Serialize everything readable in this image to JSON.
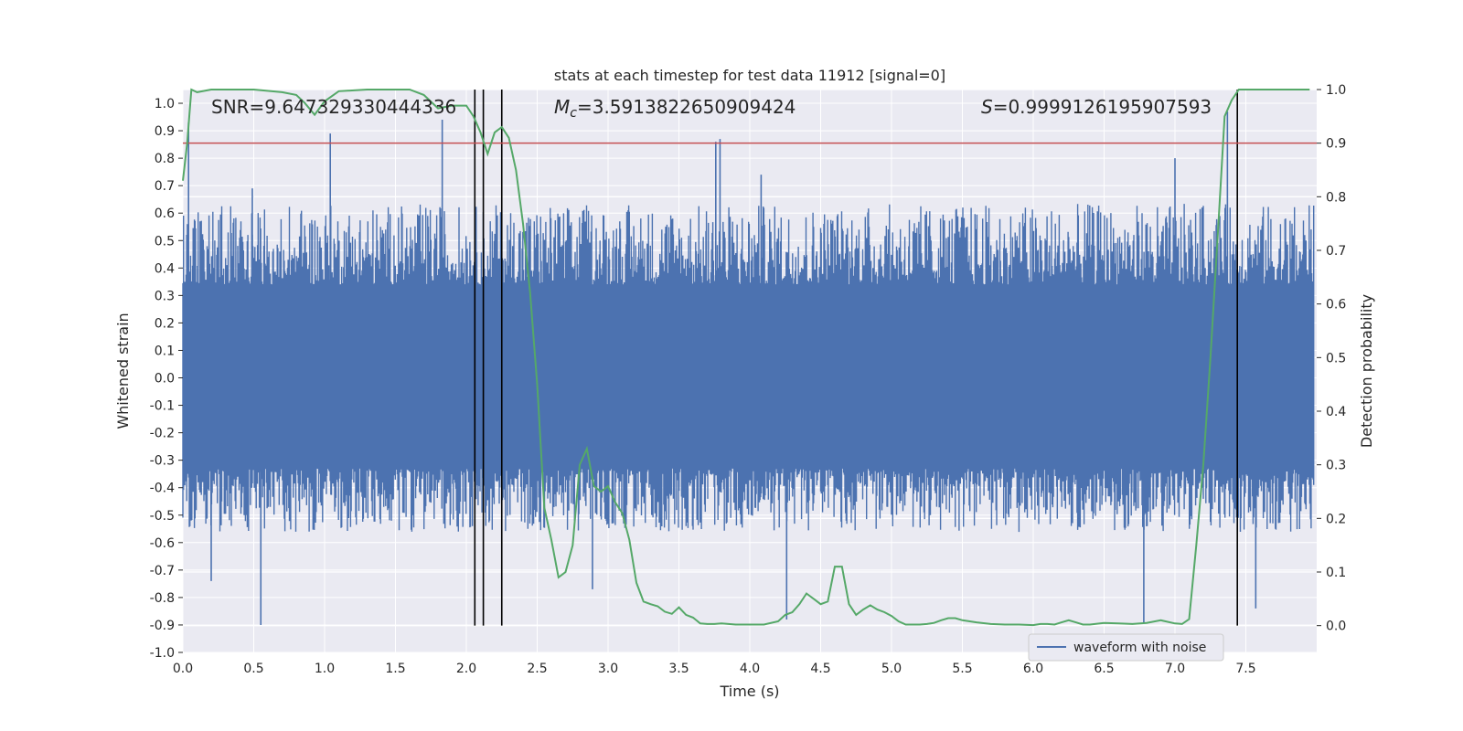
{
  "chart_data": {
    "type": "line",
    "title": "stats at each timestep for test data 11912 [signal=0]",
    "xlabel": "Time (s)",
    "ylabel": "Whitened strain",
    "y2label": "Detection probability",
    "xlim": [
      0.0,
      8.0
    ],
    "ylim": [
      -1.0,
      1.05
    ],
    "y2lim": [
      -0.05,
      1.0
    ],
    "xticks": [
      "0.0",
      "0.5",
      "1.0",
      "1.5",
      "2.0",
      "2.5",
      "3.0",
      "3.5",
      "4.0",
      "4.5",
      "5.0",
      "5.5",
      "6.0",
      "6.5",
      "7.0",
      "7.5"
    ],
    "yticks": [
      "1.0",
      "0.9",
      "0.8",
      "0.7",
      "0.6",
      "0.5",
      "0.4",
      "0.3",
      "0.2",
      "0.1",
      "0.0",
      "-0.1",
      "-0.2",
      "-0.3",
      "-0.4",
      "-0.5",
      "-0.6",
      "-0.7",
      "-0.8",
      "-0.9",
      "-1.0"
    ],
    "y2ticks": [
      "1.0",
      "0.9",
      "0.8",
      "0.7",
      "0.6",
      "0.5",
      "0.4",
      "0.3",
      "0.2",
      "0.1",
      "0.0"
    ],
    "grid": true,
    "legend_placement": "lower-right",
    "colors": {
      "background": "#eaeaf2",
      "grid": "#ffffff",
      "waveform": "#4c72b0",
      "probability": "#55a868",
      "threshold": "#c44e52",
      "markers": "#000000"
    },
    "annotations": {
      "snr": "SNR=9.647329330444336",
      "mc": "=3.5913822650909424",
      "mc_symbol": "M",
      "mc_subscript": "c",
      "s": "=0.9999126195907593",
      "s_symbol": "S"
    },
    "threshold_y2": 0.9,
    "vertical_lines_x": [
      2.06,
      2.12,
      2.25,
      7.44
    ],
    "series": [
      {
        "name": "waveform with noise",
        "style": "dense-noise",
        "band_y": [
          -0.33,
          0.34
        ],
        "typical_peak_y": [
          -0.55,
          0.62
        ],
        "spikes": [
          {
            "x": 0.04,
            "y": 0.93
          },
          {
            "x": 0.55,
            "y": -0.9
          },
          {
            "x": 1.04,
            "y": 0.89
          },
          {
            "x": 1.83,
            "y": 0.94
          },
          {
            "x": 3.76,
            "y": 0.86
          },
          {
            "x": 3.79,
            "y": 0.87
          },
          {
            "x": 4.26,
            "y": -0.88
          },
          {
            "x": 7.37,
            "y": 0.97
          },
          {
            "x": 6.78,
            "y": -0.89
          },
          {
            "x": 0.2,
            "y": -0.74
          },
          {
            "x": 0.49,
            "y": 0.69
          },
          {
            "x": 2.89,
            "y": -0.77
          },
          {
            "x": 4.08,
            "y": 0.74
          },
          {
            "x": 7.57,
            "y": -0.84
          },
          {
            "x": 7.0,
            "y": 0.8
          }
        ]
      },
      {
        "name": "",
        "axis": "y2",
        "x": [
          0.0,
          0.03,
          0.06,
          0.1,
          0.2,
          0.3,
          0.5,
          0.7,
          0.8,
          0.86,
          0.93,
          1.0,
          1.1,
          1.3,
          1.5,
          1.6,
          1.7,
          1.8,
          1.9,
          2.0,
          2.05,
          2.1,
          2.15,
          2.2,
          2.25,
          2.3,
          2.35,
          2.4,
          2.45,
          2.5,
          2.55,
          2.6,
          2.65,
          2.7,
          2.75,
          2.8,
          2.85,
          2.9,
          2.95,
          3.0,
          3.05,
          3.1,
          3.15,
          3.2,
          3.25,
          3.3,
          3.35,
          3.4,
          3.45,
          3.5,
          3.55,
          3.6,
          3.65,
          3.7,
          3.75,
          3.8,
          3.9,
          4.0,
          4.1,
          4.2,
          4.25,
          4.3,
          4.35,
          4.4,
          4.45,
          4.5,
          4.55,
          4.6,
          4.65,
          4.7,
          4.75,
          4.8,
          4.85,
          4.9,
          4.95,
          5.0,
          5.05,
          5.1,
          5.15,
          5.2,
          5.25,
          5.3,
          5.35,
          5.4,
          5.45,
          5.5,
          5.6,
          5.7,
          5.8,
          5.9,
          6.0,
          6.05,
          6.1,
          6.15,
          6.2,
          6.25,
          6.3,
          6.35,
          6.4,
          6.5,
          6.6,
          6.7,
          6.8,
          6.9,
          7.0,
          7.05,
          7.1,
          7.15,
          7.2,
          7.25,
          7.3,
          7.35,
          7.4,
          7.45,
          7.5,
          7.55,
          7.6,
          7.7,
          7.8,
          7.95
        ],
        "values": [
          0.83,
          0.9,
          1.0,
          0.995,
          1.0,
          1.0,
          1.0,
          0.995,
          0.99,
          0.975,
          0.953,
          0.978,
          0.997,
          1.0,
          1.0,
          1.0,
          0.99,
          0.965,
          0.97,
          0.97,
          0.95,
          0.92,
          0.88,
          0.92,
          0.93,
          0.91,
          0.85,
          0.75,
          0.62,
          0.45,
          0.22,
          0.16,
          0.09,
          0.1,
          0.15,
          0.3,
          0.33,
          0.26,
          0.25,
          0.26,
          0.23,
          0.21,
          0.16,
          0.08,
          0.045,
          0.04,
          0.036,
          0.026,
          0.022,
          0.034,
          0.02,
          0.015,
          0.004,
          0.003,
          0.003,
          0.004,
          0.002,
          0.002,
          0.002,
          0.008,
          0.02,
          0.025,
          0.04,
          0.06,
          0.05,
          0.04,
          0.045,
          0.11,
          0.11,
          0.04,
          0.02,
          0.03,
          0.038,
          0.03,
          0.025,
          0.018,
          0.008,
          0.002,
          0.002,
          0.002,
          0.003,
          0.005,
          0.01,
          0.014,
          0.014,
          0.01,
          0.006,
          0.003,
          0.002,
          0.002,
          0.001,
          0.003,
          0.003,
          0.002,
          0.006,
          0.01,
          0.006,
          0.002,
          0.002,
          0.005,
          0.004,
          0.003,
          0.005,
          0.01,
          0.004,
          0.003,
          0.012,
          0.15,
          0.3,
          0.5,
          0.72,
          0.95,
          0.98,
          1.0,
          1.0,
          1.0,
          1.0,
          1.0,
          1.0,
          1.0
        ]
      }
    ]
  }
}
